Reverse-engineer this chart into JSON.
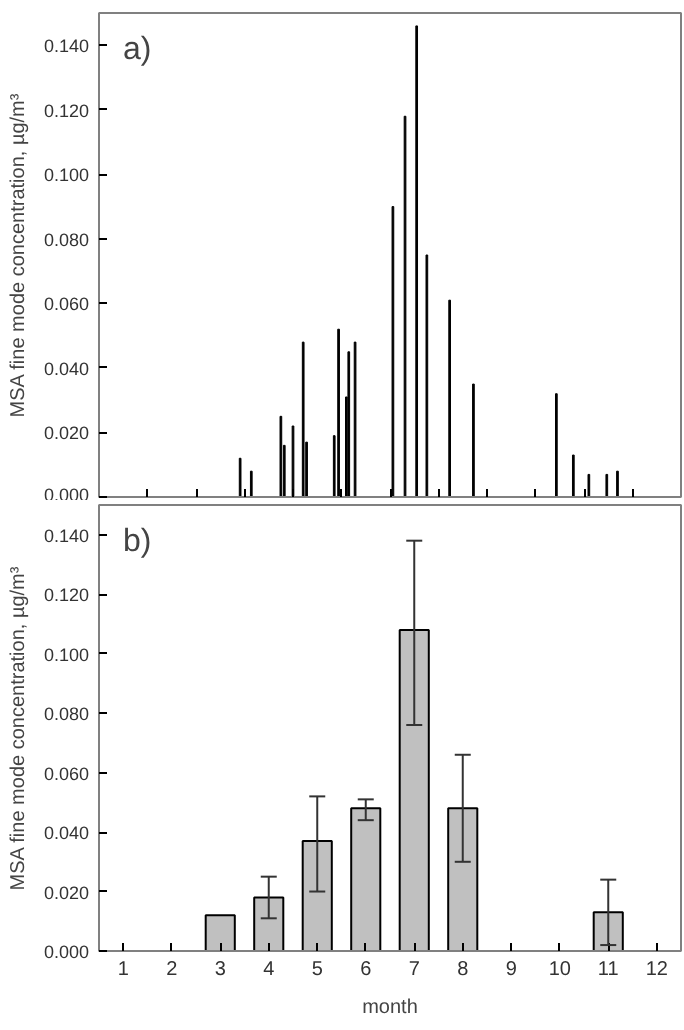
{
  "chart_data": [
    {
      "type": "bar",
      "ylabel": "MSA fine mode concentration, µg/m³",
      "annotations": [
        "a)"
      ],
      "color": "#000000",
      "x": [
        3.41,
        3.64,
        4.25,
        4.32,
        4.5,
        4.71,
        4.78,
        5.35,
        5.44,
        5.6,
        5.65,
        5.78,
        6.56,
        6.81,
        7.05,
        7.26,
        7.73,
        8.22,
        9.93,
        10.28,
        10.6,
        10.97,
        11.19
      ],
      "values": [
        0.012,
        0.008,
        0.025,
        0.016,
        0.022,
        0.048,
        0.017,
        0.019,
        0.052,
        0.031,
        0.045,
        0.048,
        0.09,
        0.118,
        0.146,
        0.075,
        0.061,
        0.035,
        0.032,
        0.013,
        0.007,
        0.007,
        0.008
      ],
      "xlim": [
        0.5,
        12.5
      ],
      "ylim": [
        0,
        0.15
      ],
      "xticks": [
        {
          "value": 1.5,
          "label": null
        },
        {
          "value": 2.5,
          "label": null
        },
        {
          "value": 3.5,
          "label": null
        },
        {
          "value": 4.5,
          "label": null
        },
        {
          "value": 5.5,
          "label": null
        },
        {
          "value": 6.5,
          "label": null
        },
        {
          "value": 7.5,
          "label": null
        },
        {
          "value": 8.5,
          "label": null
        },
        {
          "value": 9.5,
          "label": null
        },
        {
          "value": 10.5,
          "label": null
        },
        {
          "value": 11.5,
          "label": null
        }
      ],
      "yticks": [
        {
          "value": 0,
          "label": "0.000"
        },
        {
          "value": 0.02,
          "label": "0.020"
        },
        {
          "value": 0.04,
          "label": "0.040"
        },
        {
          "value": 0.06,
          "label": "0.060"
        },
        {
          "value": 0.08,
          "label": "0.080"
        },
        {
          "value": 0.1,
          "label": "0.100"
        },
        {
          "value": 0.12,
          "label": "0.120"
        },
        {
          "value": 0.14,
          "label": "0.140"
        }
      ],
      "tick_labels": "y"
    },
    {
      "type": "bar",
      "xlabel": "month",
      "ylabel": "MSA fine mode concentration, µg/m³",
      "annotations": [
        "b)"
      ],
      "color": "#c0c0c0",
      "x": [
        3,
        4,
        5,
        6,
        7,
        8,
        11
      ],
      "values": [
        0.012,
        0.018,
        0.037,
        0.048,
        0.108,
        0.048,
        0.013
      ],
      "errors": [
        null,
        [
          0.011,
          0.025
        ],
        [
          0.02,
          0.052
        ],
        [
          0.044,
          0.051
        ],
        [
          0.076,
          0.138
        ],
        [
          0.03,
          0.066
        ],
        [
          0.002,
          0.024
        ]
      ],
      "xlim": [
        0.5,
        12.5
      ],
      "ylim": [
        0,
        0.15
      ],
      "xticks": [
        1,
        2,
        3,
        4,
        5,
        6,
        7,
        8,
        9,
        10,
        11,
        12
      ],
      "yticks": [
        {
          "value": 0,
          "label": "0.000"
        },
        {
          "value": 0.02,
          "label": "0.020"
        },
        {
          "value": 0.04,
          "label": "0.040"
        },
        {
          "value": 0.06,
          "label": "0.060"
        },
        {
          "value": 0.08,
          "label": "0.080"
        },
        {
          "value": 0.1,
          "label": "0.100"
        },
        {
          "value": 0.12,
          "label": "0.120"
        },
        {
          "value": 0.14,
          "label": "0.140"
        }
      ]
    }
  ]
}
